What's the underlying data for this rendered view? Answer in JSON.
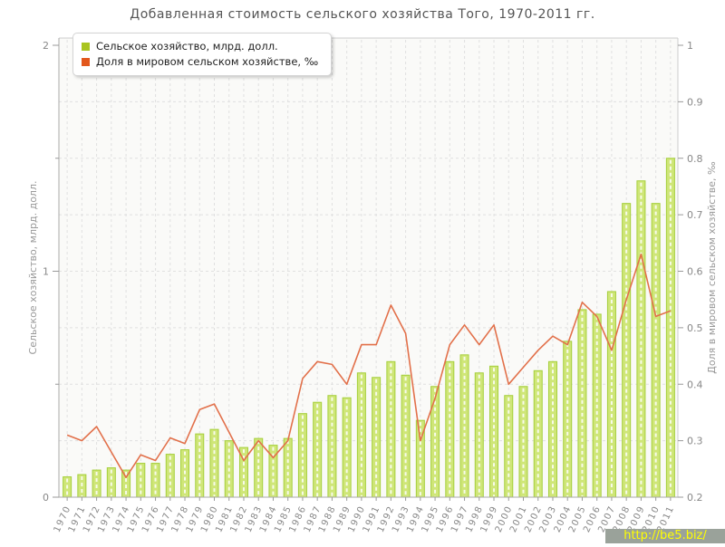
{
  "page": {
    "title": "Добавленная стоимость сельского хозяйства Того, 1970-2011 гг."
  },
  "legend": {
    "items": [
      {
        "label": "Сельское хозяйство, млрд. долл.",
        "color": "#a9c41f"
      },
      {
        "label": "Доля в мировом сельском хозяйстве, ‰",
        "color": "#e2571c"
      }
    ]
  },
  "watermark": {
    "text": "http://be5.biz/",
    "text_color": "#ffff00",
    "bg_color": "#9aa29a"
  },
  "chart_data": {
    "type": "bar+line",
    "title": "Добавленная стоимость сельского хозяйства Того, 1970-2011 гг.",
    "categories": [
      1970,
      1971,
      1972,
      1973,
      1974,
      1975,
      1976,
      1977,
      1978,
      1979,
      1980,
      1981,
      1982,
      1983,
      1984,
      1985,
      1986,
      1987,
      1988,
      1989,
      1990,
      1991,
      1992,
      1993,
      1994,
      1995,
      1996,
      1997,
      1998,
      1999,
      2000,
      2001,
      2002,
      2003,
      2004,
      2005,
      2006,
      2007,
      2008,
      2009,
      2010,
      2011
    ],
    "series": [
      {
        "name": "Сельское хозяйство, млрд. долл.",
        "type": "bar",
        "axis": "left",
        "fill": "#cfe678",
        "border": "#a5cf3b",
        "values": [
          0.09,
          0.1,
          0.12,
          0.13,
          0.12,
          0.15,
          0.15,
          0.19,
          0.21,
          0.28,
          0.3,
          0.25,
          0.22,
          0.26,
          0.23,
          0.26,
          0.37,
          0.42,
          0.45,
          0.44,
          0.55,
          0.53,
          0.6,
          0.54,
          0.34,
          0.49,
          0.6,
          0.63,
          0.55,
          0.58,
          0.45,
          0.49,
          0.56,
          0.6,
          0.69,
          0.83,
          0.81,
          0.91,
          1.3,
          1.4,
          1.3,
          1.5
        ]
      },
      {
        "name": "Доля в мировом сельском хозяйстве, ‰",
        "type": "line",
        "axis": "right",
        "color": "#e2704a",
        "values": [
          0.31,
          0.3,
          0.325,
          0.28,
          0.235,
          0.275,
          0.265,
          0.305,
          0.295,
          0.355,
          0.365,
          0.315,
          0.265,
          0.3,
          0.27,
          0.3,
          0.41,
          0.44,
          0.435,
          0.4,
          0.47,
          0.47,
          0.54,
          0.49,
          0.3,
          0.375,
          0.47,
          0.505,
          0.47,
          0.505,
          0.4,
          0.43,
          0.46,
          0.485,
          0.47,
          0.545,
          0.52,
          0.46,
          0.55,
          0.63,
          0.52,
          0.53
        ]
      }
    ],
    "left_axis": {
      "label": "Сельское хозяйство, млрд. долл.",
      "min": 0,
      "max": 2,
      "major_ticks": [
        0,
        1,
        2
      ],
      "minor_ticks": [
        0.5,
        1.5
      ]
    },
    "right_axis": {
      "label": "Доля в мировом сельском хозяйстве, ‰",
      "min": 0.2,
      "max": 1.0,
      "tick_step": 0.1,
      "grid_values": [
        0.3,
        0.4,
        0.5,
        0.6,
        0.7,
        0.8,
        0.9
      ]
    },
    "grid": true,
    "legend_position": "top-left"
  }
}
